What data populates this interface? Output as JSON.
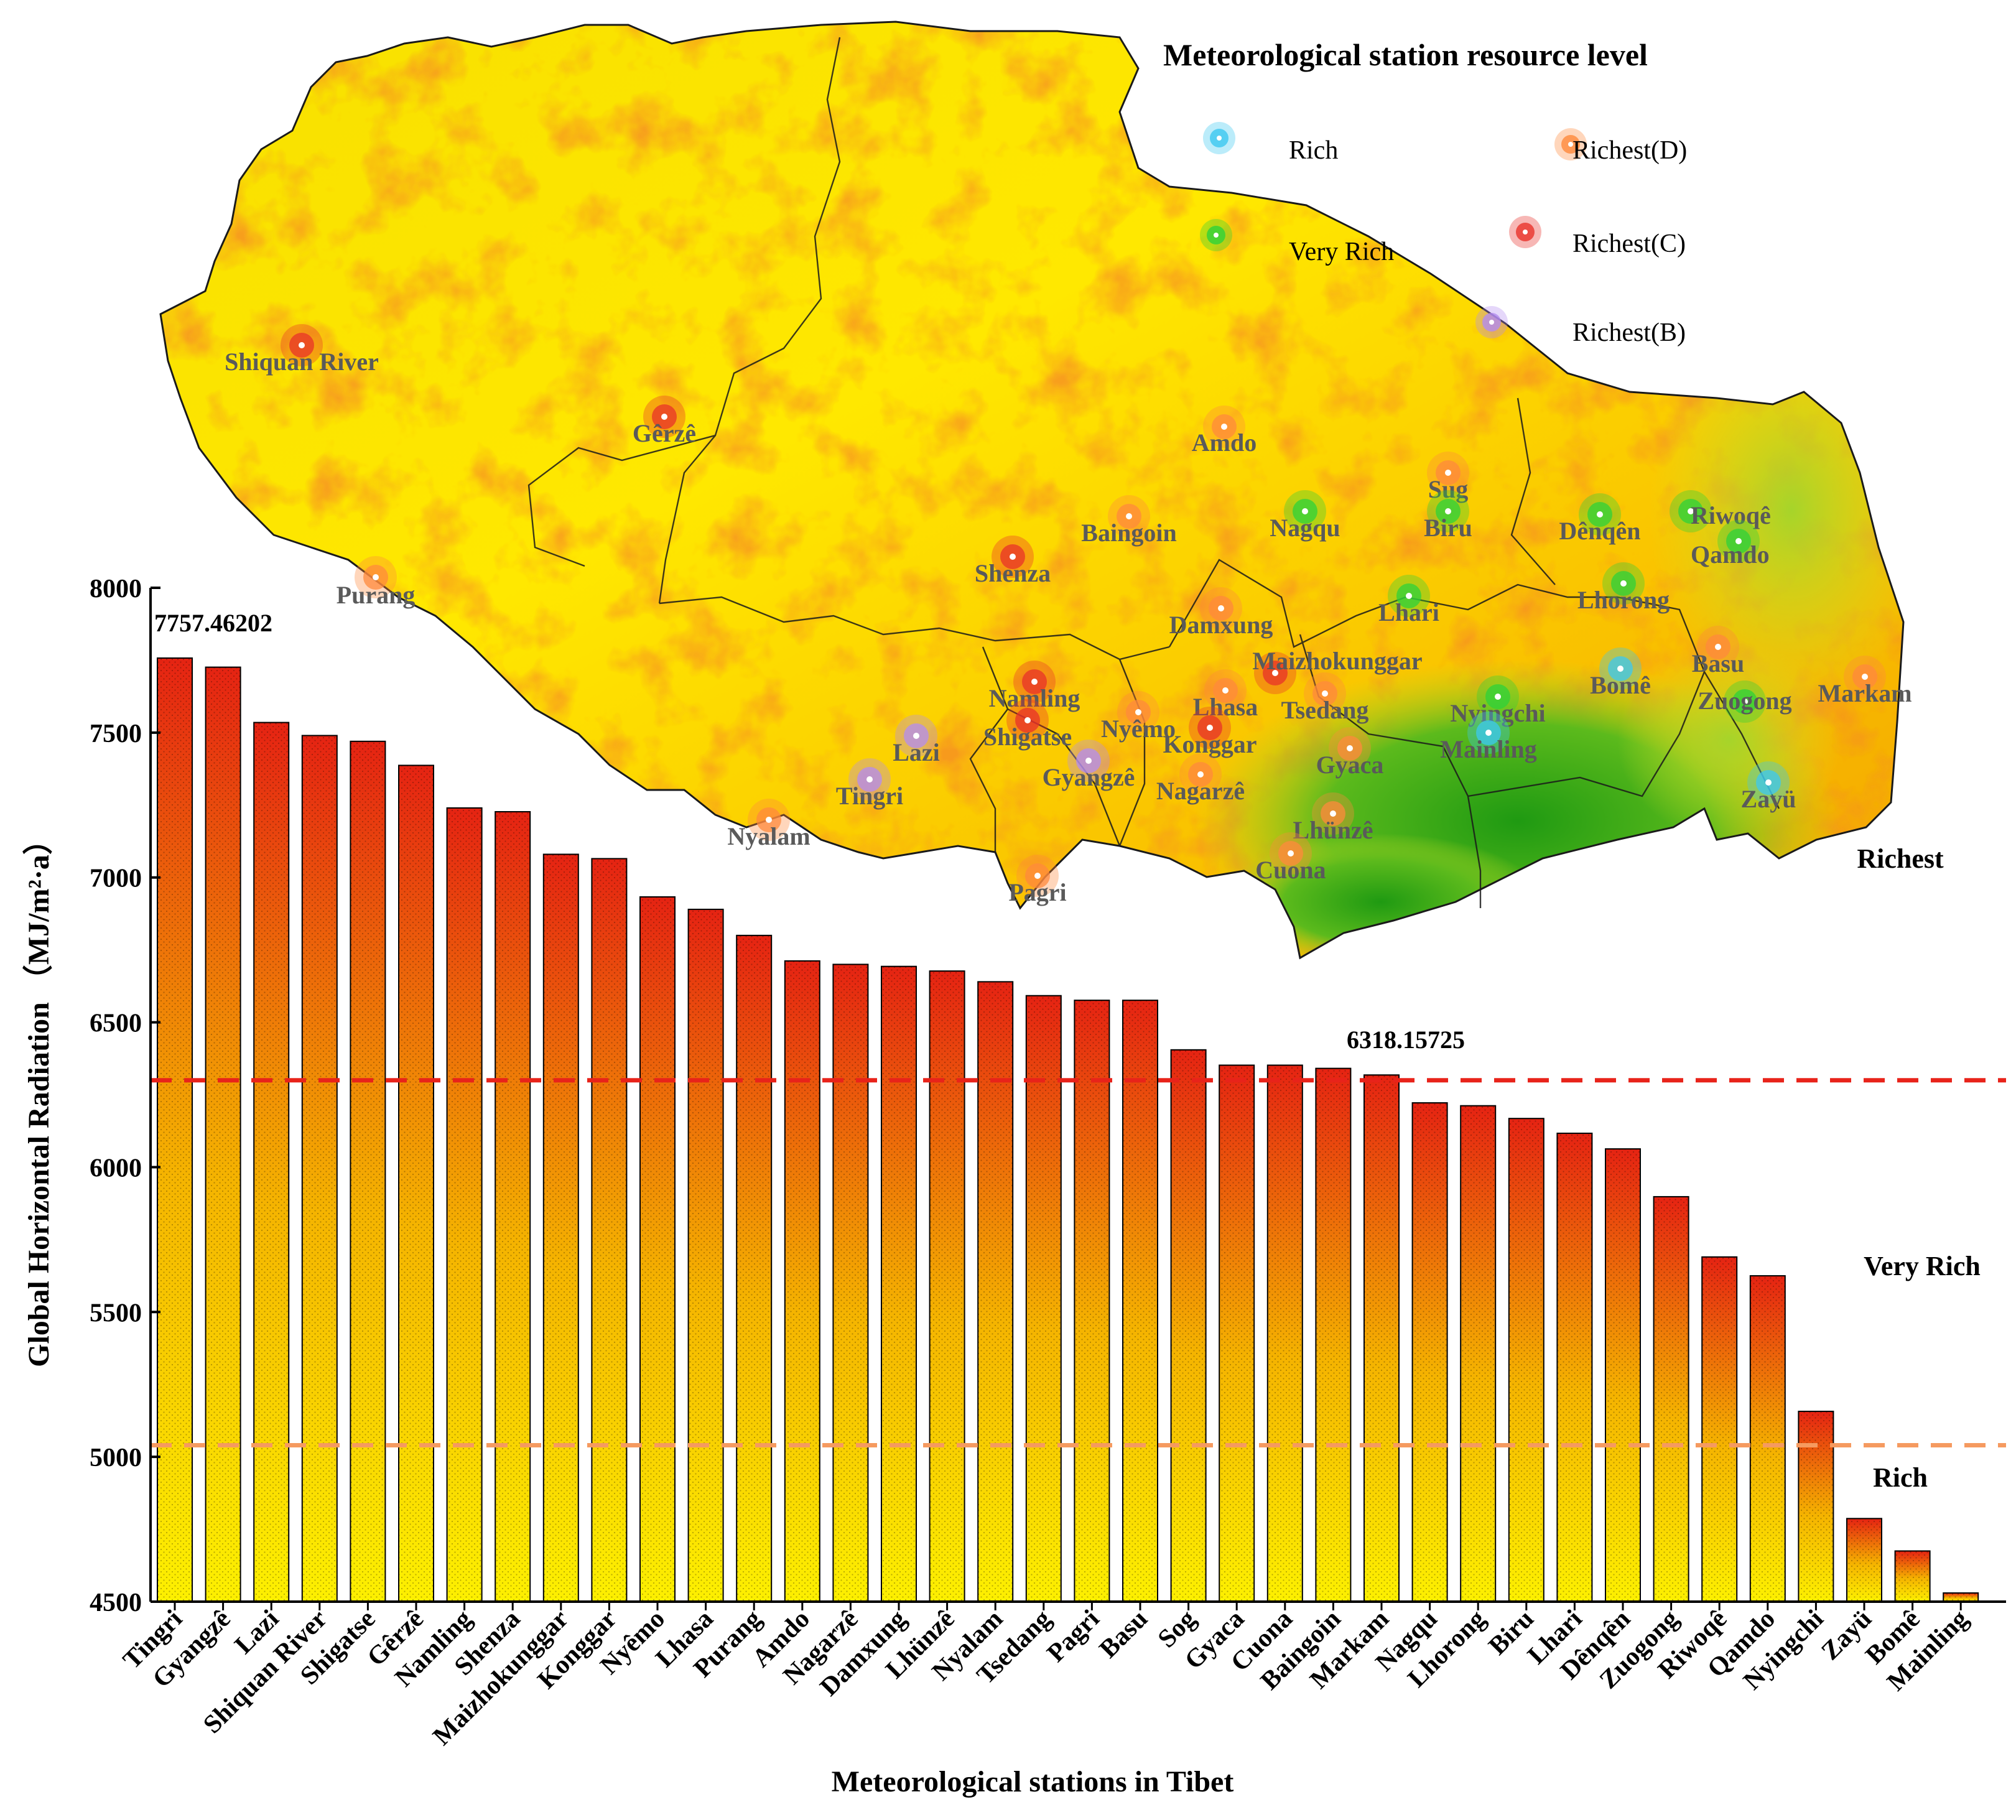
{
  "chart_data": {
    "type": "bar",
    "ylabel": "Global Horizontal Radiation （MJ/m²·a）",
    "xlabel": "Meteorological stations in Tibet",
    "ylim": [
      4500,
      8000
    ],
    "yticks": [
      "4500",
      "5000",
      "5500",
      "6000",
      "6500",
      "7000",
      "7500",
      "8000"
    ],
    "categories": [
      "Tingri",
      "Gyangzê",
      "Lazi",
      "Shiquan River",
      "Shigatse",
      "Gêrzê",
      "Namling",
      "Shenza",
      "Maizhokunggar",
      "Konggar",
      "Nyêmo",
      "Lhasa",
      "Purang",
      "Amdo",
      "Nagarzê",
      "Damxung",
      "Lhünzê",
      "Nyalam",
      "Tsedang",
      "Pagri",
      "Basu",
      "Sog",
      "Gyaca",
      "Cuona",
      "Baingoin",
      "Markam",
      "Nagqu",
      "Lhorong",
      "Biru",
      "Lhari",
      "Dênqên",
      "Zuogong",
      "Riwoqê",
      "Qamdo",
      "Nyingchi",
      "Zayü",
      "Bomê",
      "Mainling"
    ],
    "values": [
      7757.46,
      7726,
      7535,
      7490,
      7470,
      7387,
      7240,
      7227,
      7080,
      7065,
      6933,
      6890,
      6800,
      6712,
      6700,
      6693,
      6677,
      6640,
      6592,
      6576,
      6576,
      6405,
      6352,
      6352,
      6341,
      6318.16,
      6222,
      6212,
      6168,
      6117,
      6063,
      5898,
      5690,
      5625,
      5157,
      4787,
      4675,
      4530
    ],
    "annotations": [
      "7757.46202",
      "6318.15725"
    ],
    "thresholds": [
      {
        "value": 6300,
        "color": "#e8231a",
        "label": "Richest"
      },
      {
        "value": 5040,
        "color": "#f59a60",
        "label": "Very Rich"
      }
    ],
    "level_labels": [
      "Richest",
      "Very Rich",
      "Rich"
    ],
    "bar_gradient": [
      "#e52312",
      "#f5b400",
      "#fdf000"
    ],
    "grid": false
  },
  "map": {
    "legend_title": "Meteorological station resource level",
    "legend": [
      {
        "label": "Rich",
        "color": "#3cc8f0"
      },
      {
        "label": "Very Rich",
        "color": "#2ed23a"
      },
      {
        "label": "Richest(D)",
        "color": "#ff8a3c"
      },
      {
        "label": "Richest(C)",
        "color": "#e8322a"
      },
      {
        "label": "Richest(B)",
        "color": "#b48cf0"
      }
    ],
    "stations": [
      {
        "name": "Shiquan River",
        "level": "Richest(C)"
      },
      {
        "name": "Gêrzê",
        "level": "Richest(C)"
      },
      {
        "name": "Purang",
        "level": "Richest(D)"
      },
      {
        "name": "Amdo",
        "level": "Richest(D)"
      },
      {
        "name": "Baingoin",
        "level": "Richest(D)"
      },
      {
        "name": "Nagqu",
        "level": "Very Rich"
      },
      {
        "name": "Sug",
        "level": "Richest(D)"
      },
      {
        "name": "Biru",
        "level": "Very Rich"
      },
      {
        "name": "Dênqên",
        "level": "Very Rich"
      },
      {
        "name": "Riwoqê",
        "level": "Very Rich"
      },
      {
        "name": "Qamdo",
        "level": "Very Rich"
      },
      {
        "name": "Shenza",
        "level": "Richest(C)"
      },
      {
        "name": "Lhari",
        "level": "Very Rich"
      },
      {
        "name": "Lhorong",
        "level": "Very Rich"
      },
      {
        "name": "Damxung",
        "level": "Richest(D)"
      },
      {
        "name": "Maizhokunggar",
        "level": "Richest(C)"
      },
      {
        "name": "Basu",
        "level": "Richest(D)"
      },
      {
        "name": "Namling",
        "level": "Richest(C)"
      },
      {
        "name": "Lhasa",
        "level": "Richest(D)"
      },
      {
        "name": "Tsedang",
        "level": "Richest(D)"
      },
      {
        "name": "Nyingchi",
        "level": "Very Rich"
      },
      {
        "name": "Bomê",
        "level": "Rich"
      },
      {
        "name": "Zuogong",
        "level": "Very Rich"
      },
      {
        "name": "Markam",
        "level": "Richest(D)"
      },
      {
        "name": "Shigatse",
        "level": "Richest(C)"
      },
      {
        "name": "Nyêmo",
        "level": "Richest(D)"
      },
      {
        "name": "Konggar",
        "level": "Richest(C)"
      },
      {
        "name": "Lazi",
        "level": "Richest(B)"
      },
      {
        "name": "Gyangzê",
        "level": "Richest(B)"
      },
      {
        "name": "Nagarzê",
        "level": "Richest(D)"
      },
      {
        "name": "Gyaca",
        "level": "Richest(D)"
      },
      {
        "name": "Mainling",
        "level": "Rich"
      },
      {
        "name": "Tingri",
        "level": "Richest(B)"
      },
      {
        "name": "Nyalam",
        "level": "Richest(D)"
      },
      {
        "name": "Zayü",
        "level": "Rich"
      },
      {
        "name": "Lhünzê",
        "level": "Richest(D)"
      },
      {
        "name": "Cuona",
        "level": "Richest(D)"
      },
      {
        "name": "Pagri",
        "level": "Richest(D)"
      }
    ]
  }
}
